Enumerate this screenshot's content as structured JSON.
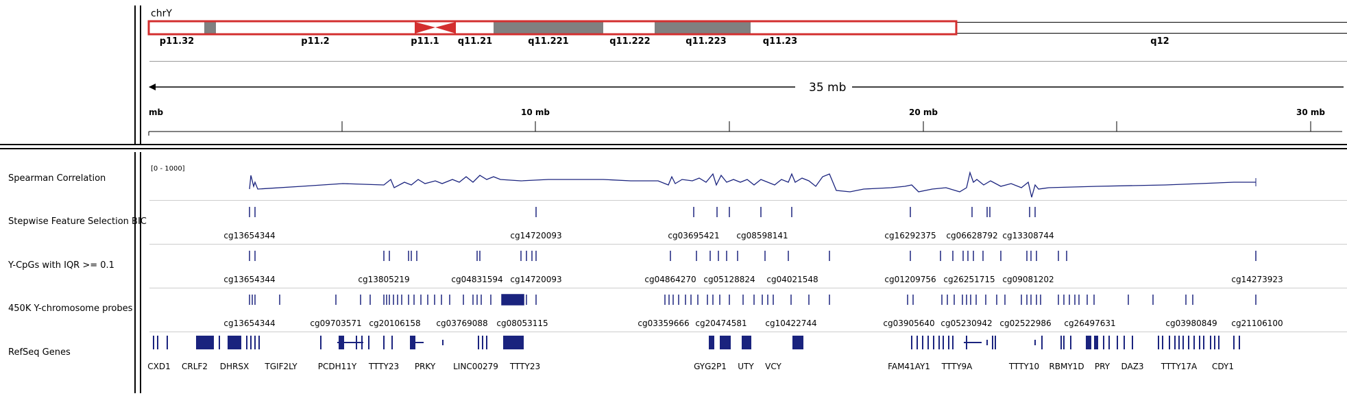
{
  "ideogram": {
    "chromosome": "chrY",
    "bands": [
      "p11.32",
      "p11.2",
      "p11.1",
      "q11.21",
      "q11.221",
      "q11.222",
      "q11.223",
      "q11.23",
      "q12"
    ]
  },
  "ruler": {
    "span_label": "35 mb",
    "ticks": [
      "mb",
      "10 mb",
      "20 mb",
      "30 mb"
    ]
  },
  "tracks": {
    "spearman": {
      "name": "Spearman Correlation",
      "range": "[0 - 1000]"
    },
    "bic": {
      "name": "Stepwise Feature Selection BIC",
      "labels": [
        "cg13654344",
        "cg14720093",
        "cg03695421",
        "cg08598141",
        "cg16292375",
        "cg06628792",
        "cg13308744"
      ]
    },
    "iqr": {
      "name": "Y-CpGs with IQR >= 0.1",
      "labels": [
        "cg13654344",
        "cg13805219",
        "cg04831594",
        "cg14720093",
        "cg04864270",
        "cg05128824",
        "cg04021548",
        "cg01209756",
        "cg26251715",
        "cg09081202",
        "cg14273923"
      ]
    },
    "probes": {
      "name": "450K Y-chromosome probes",
      "labels": [
        "cg13654344",
        "cg09703571",
        "cg20106158",
        "cg03769088",
        "cg08053115",
        "cg03359666",
        "cg20474581",
        "cg10422744",
        "cg03905640",
        "cg05230942",
        "cg02522986",
        "cg26497631",
        "cg03980849",
        "cg21106100"
      ]
    },
    "genes": {
      "name": "RefSeq Genes",
      "labels": [
        "CXD1",
        "CRLF2",
        "DHRSX",
        "TGIF2LY",
        "PCDH11Y",
        "TTTY23",
        "PRKY",
        "LINC00279",
        "TTTY23",
        "GYG2P1",
        "UTY",
        "VCY",
        "FAM41AY1",
        "TTTY9A",
        "TTTY10",
        "RBMY1D",
        "PRY",
        "DAZ3",
        "TTTY17A",
        "CDY1"
      ]
    }
  },
  "colors": {
    "feature": "#1a237e",
    "highlight": "#d32f2f",
    "band_dark": "#808080"
  }
}
